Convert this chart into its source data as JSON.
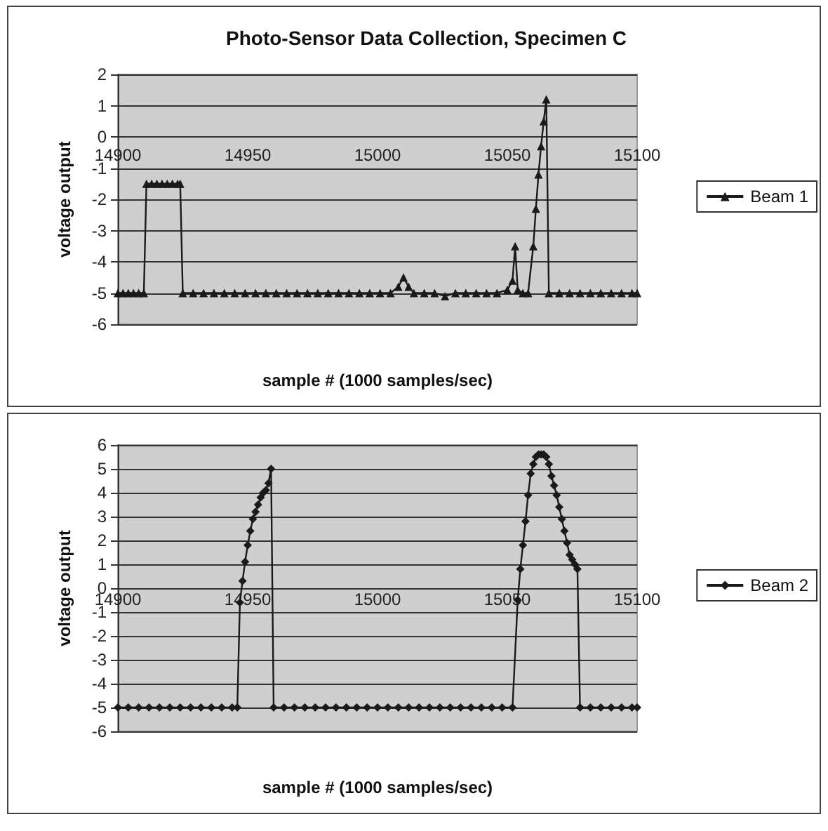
{
  "chart_data": [
    {
      "type": "line",
      "title": "Photo-Sensor Data Collection, Specimen C",
      "xlabel": "sample # (1000 samples/sec)",
      "ylabel": "voltage output",
      "xlim": [
        14900,
        15100
      ],
      "xticks": [
        14900,
        14950,
        15000,
        15050,
        15100
      ],
      "ylim": [
        -6,
        2
      ],
      "yticks": [
        -6,
        -5,
        -4,
        -3,
        -2,
        -1,
        0,
        1,
        2
      ],
      "grid": "y",
      "legend": "right",
      "marker": "triangle",
      "series": [
        {
          "name": "Beam 1",
          "color": "#1a1a1a",
          "x": [
            14900,
            14902,
            14904,
            14906,
            14908,
            14910,
            14911,
            14913,
            14915,
            14917,
            14919,
            14921,
            14923,
            14924,
            14925,
            14929,
            14933,
            14937,
            14941,
            14945,
            14949,
            14953,
            14957,
            14961,
            14965,
            14969,
            14973,
            14977,
            14981,
            14985,
            14989,
            14993,
            14997,
            15001,
            15005,
            15008,
            15010,
            15012,
            15014,
            15018,
            15022,
            15026,
            15030,
            15034,
            15038,
            15042,
            15046,
            15050,
            15052,
            15053,
            15054,
            15056,
            15058,
            15060,
            15061,
            15062,
            15063,
            15064,
            15065,
            15066,
            15070,
            15074,
            15078,
            15082,
            15086,
            15090,
            15094,
            15098,
            15100
          ],
          "values": [
            -5,
            -5,
            -5,
            -5,
            -5,
            -5,
            -1.5,
            -1.5,
            -1.5,
            -1.5,
            -1.5,
            -1.5,
            -1.5,
            -1.5,
            -5,
            -5,
            -5,
            -5,
            -5,
            -5,
            -5,
            -5,
            -5,
            -5,
            -5,
            -5,
            -5,
            -5,
            -5,
            -5,
            -5,
            -5,
            -5,
            -5,
            -5,
            -4.8,
            -4.5,
            -4.8,
            -5,
            -5,
            -5,
            -5.1,
            -5,
            -5,
            -5,
            -5,
            -5,
            -4.9,
            -4.6,
            -3.5,
            -4.9,
            -5,
            -5,
            -3.5,
            -2.3,
            -1.2,
            -0.3,
            0.5,
            1.2,
            -5,
            -5,
            -5,
            -5,
            -5,
            -5,
            -5,
            -5,
            -5,
            -5
          ]
        }
      ]
    },
    {
      "type": "line",
      "xlabel": "sample # (1000 samples/sec)",
      "ylabel": "voltage output",
      "xlim": [
        14900,
        15100
      ],
      "xticks": [
        14900,
        14950,
        15000,
        15050,
        15100
      ],
      "ylim": [
        -6,
        6
      ],
      "yticks": [
        -6,
        -5,
        -4,
        -3,
        -2,
        -1,
        0,
        1,
        2,
        3,
        4,
        5,
        6
      ],
      "grid": "y",
      "legend": "right",
      "marker": "diamond",
      "series": [
        {
          "name": "Beam 2",
          "color": "#1a1a1a",
          "x": [
            14900,
            14904,
            14908,
            14912,
            14916,
            14920,
            14924,
            14928,
            14932,
            14936,
            14940,
            14944,
            14946,
            14947,
            14948,
            14949,
            14950,
            14951,
            14952,
            14953,
            14954,
            14955,
            14956,
            14957,
            14958,
            14959,
            14960,
            14964,
            14968,
            14972,
            14976,
            14980,
            14984,
            14988,
            14992,
            14996,
            15000,
            15004,
            15008,
            15012,
            15016,
            15020,
            15024,
            15028,
            15032,
            15036,
            15040,
            15044,
            15048,
            15052,
            15054,
            15055,
            15056,
            15057,
            15058,
            15059,
            15060,
            15061,
            15062,
            15063,
            15064,
            15065,
            15066,
            15067,
            15068,
            15069,
            15070,
            15071,
            15072,
            15073,
            15074,
            15075,
            15076,
            15077,
            15078,
            15082,
            15086,
            15090,
            15094,
            15098,
            15100
          ],
          "values": [
            -5,
            -5,
            -5,
            -5,
            -5,
            -5,
            -5,
            -5,
            -5,
            -5,
            -5,
            -5,
            -5,
            -0.6,
            0.3,
            1.1,
            1.8,
            2.4,
            2.9,
            3.2,
            3.5,
            3.8,
            4.0,
            4.1,
            4.4,
            5.0,
            -5,
            -5,
            -5,
            -5,
            -5,
            -5,
            -5,
            -5,
            -5,
            -5,
            -5,
            -5,
            -5,
            -5,
            -5,
            -5,
            -5,
            -5,
            -5,
            -5,
            -5,
            -5,
            -5,
            -5,
            -0.5,
            0.8,
            1.8,
            2.8,
            3.9,
            4.8,
            5.2,
            5.5,
            5.6,
            5.6,
            5.6,
            5.5,
            5.2,
            4.7,
            4.3,
            3.9,
            3.4,
            2.9,
            2.4,
            1.9,
            1.4,
            1.2,
            1.0,
            0.8,
            -5,
            -5,
            -5,
            -5,
            -5,
            -5,
            -5
          ]
        }
      ]
    }
  ]
}
